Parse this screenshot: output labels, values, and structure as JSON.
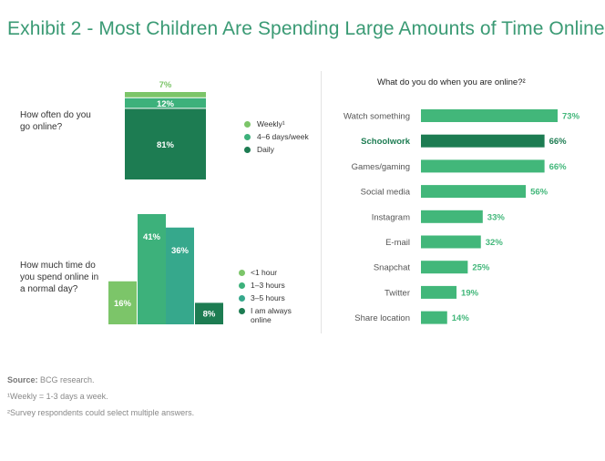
{
  "title": "Exhibit 2 - Most Children Are Spending Large Amounts of Time Online",
  "colors": {
    "light": "#7cc569",
    "mid": "#3db17b",
    "teal": "#36a88c",
    "dark": "#1d7c52",
    "title": "#3a9a74",
    "bar": "#42b77a",
    "bar_highlight": "#1d7c52"
  },
  "chart_data": [
    {
      "type": "bar",
      "stacked": true,
      "question": "How often do you go online?",
      "series": [
        {
          "name": "Weekly¹",
          "value": 7,
          "label": "7%",
          "color": "#7cc569"
        },
        {
          "name": "4–6 days/week",
          "value": 12,
          "label": "12%",
          "color": "#3db17b"
        },
        {
          "name": "Daily",
          "value": 81,
          "label": "81%",
          "color": "#1d7c52"
        }
      ]
    },
    {
      "type": "bar",
      "question": "How much time do you spend online in a normal day?",
      "categories": [
        "<1 hour",
        "1–3 hours",
        "3–5 hours",
        "I am always online"
      ],
      "values": [
        16,
        41,
        36,
        8
      ],
      "labels": [
        "16%",
        "41%",
        "36%",
        "8%"
      ],
      "colors": [
        "#7cc569",
        "#3db17b",
        "#36a88c",
        "#1d7c52"
      ]
    },
    {
      "type": "bar",
      "orientation": "horizontal",
      "title": "What do you do when you are online?²",
      "categories": [
        "Watch something",
        "Schoolwork",
        "Games/gaming",
        "Social media",
        "Instagram",
        "E-mail",
        "Snapchat",
        "Twitter",
        "Share location"
      ],
      "values": [
        73,
        66,
        66,
        56,
        33,
        32,
        25,
        19,
        14
      ],
      "labels": [
        "73%",
        "66%",
        "66%",
        "56%",
        "33%",
        "32%",
        "25%",
        "19%",
        "14%"
      ],
      "highlight": "Schoolwork"
    }
  ],
  "footnotes": {
    "source_label": "Source:",
    "source_text": " BCG research.",
    "note1": "¹Weekly = 1-3 days a week.",
    "note2": "²Survey respondents could select multiple answers."
  }
}
